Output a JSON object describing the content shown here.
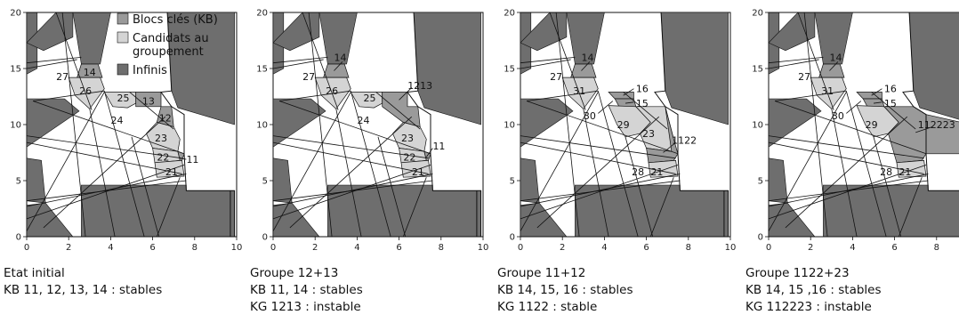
{
  "colors": {
    "key_block": "#9a9a9a",
    "candidate": "#d4d4d4",
    "infinite": "#6e6e6e",
    "free": "#ffffff",
    "line": "#111111"
  },
  "axes": {
    "xlim": [
      0,
      10
    ],
    "ylim": [
      0,
      20
    ],
    "x_ticks": [
      "0",
      "2",
      "4",
      "6",
      "8",
      "10"
    ],
    "y_ticks": [
      "0",
      "5",
      "10",
      "15",
      "20"
    ]
  },
  "legend": {
    "items": [
      {
        "label_lines": [
          "Blocs clés (KB)"
        ],
        "color": "key_block"
      },
      {
        "label_lines": [
          "Candidats au",
          "groupement"
        ],
        "color": "candidate"
      },
      {
        "label_lines": [
          "Infinis"
        ],
        "color": "infinite"
      }
    ]
  },
  "panels": [
    {
      "caption": [
        "Etat initial",
        "KB 11, 12, 13, 14 : stables"
      ],
      "regions": [
        {
          "color": "key_block",
          "pts": [
            [
              2.6,
              15.4
            ],
            [
              3.4,
              15.4
            ],
            [
              3.6,
              14.2
            ],
            [
              2.4,
              14.2
            ]
          ]
        },
        {
          "color": "candidate",
          "pts": [
            [
              2.0,
              14.2
            ],
            [
              3.5,
              14.2
            ],
            [
              3.7,
              13.2
            ],
            [
              3.0,
              11.4
            ],
            [
              2.3,
              12.6
            ]
          ]
        },
        {
          "color": "candidate",
          "pts": [
            [
              3.7,
              12.9
            ],
            [
              5.2,
              12.9
            ],
            [
              5.2,
              11.9
            ],
            [
              4.8,
              11.5
            ],
            [
              4.1,
              11.6
            ]
          ]
        },
        {
          "color": "key_block",
          "pts": [
            [
              5.2,
              12.9
            ],
            [
              6.4,
              12.9
            ],
            [
              6.4,
              11.6
            ],
            [
              5.2,
              11.6
            ]
          ]
        },
        {
          "color": "key_block",
          "pts": [
            [
              6.4,
              11.6
            ],
            [
              6.9,
              11.6
            ],
            [
              7.0,
              9.8
            ],
            [
              6.2,
              10.2
            ]
          ]
        },
        {
          "color": "candidate",
          "pts": [
            [
              6.2,
              10.2
            ],
            [
              7.0,
              9.8
            ],
            [
              7.3,
              8.7
            ],
            [
              7.2,
              7.6
            ],
            [
              6.0,
              7.9
            ],
            [
              5.7,
              9.2
            ]
          ]
        },
        {
          "color": "candidate",
          "pts": [
            [
              6.0,
              7.9
            ],
            [
              7.2,
              7.6
            ],
            [
              7.3,
              6.8
            ],
            [
              6.1,
              6.6
            ]
          ]
        },
        {
          "color": "key_block",
          "pts": [
            [
              7.2,
              7.6
            ],
            [
              7.5,
              7.4
            ],
            [
              7.4,
              6.8
            ],
            [
              7.3,
              6.8
            ]
          ]
        },
        {
          "color": "candidate",
          "pts": [
            [
              6.1,
              6.6
            ],
            [
              7.4,
              6.8
            ],
            [
              7.5,
              5.4
            ],
            [
              6.2,
              5.3
            ]
          ]
        }
      ],
      "labels": [
        {
          "text": "14",
          "x": 3.0,
          "y": 14.7
        },
        {
          "text": "27",
          "x": 1.7,
          "y": 14.3
        },
        {
          "text": "26",
          "x": 2.8,
          "y": 13.0
        },
        {
          "text": "25",
          "x": 4.6,
          "y": 12.4
        },
        {
          "text": "13",
          "x": 5.8,
          "y": 12.1
        },
        {
          "text": "24",
          "x": 4.3,
          "y": 10.4
        },
        {
          "text": "12",
          "x": 6.6,
          "y": 10.6
        },
        {
          "text": "23",
          "x": 6.4,
          "y": 8.8
        },
        {
          "text": "22",
          "x": 6.5,
          "y": 7.1
        },
        {
          "text": "11",
          "x": 7.9,
          "y": 6.9
        },
        {
          "text": "21",
          "x": 6.9,
          "y": 5.8
        }
      ],
      "leaders": [
        {
          "x1": 7.6,
          "y1": 6.9,
          "x2": 7.3,
          "y2": 7.0
        }
      ]
    },
    {
      "caption": [
        "Groupe 12+13",
        "KB 11, 14 : stables",
        "KG 1213 : instable"
      ],
      "regions": [
        {
          "color": "key_block",
          "pts": [
            [
              2.6,
              15.4
            ],
            [
              3.4,
              15.4
            ],
            [
              3.6,
              14.2
            ],
            [
              2.4,
              14.2
            ]
          ]
        },
        {
          "color": "candidate",
          "pts": [
            [
              2.0,
              14.2
            ],
            [
              3.5,
              14.2
            ],
            [
              3.7,
              13.2
            ],
            [
              3.0,
              11.4
            ],
            [
              2.3,
              12.6
            ]
          ]
        },
        {
          "color": "candidate",
          "pts": [
            [
              3.7,
              12.9
            ],
            [
              5.2,
              12.9
            ],
            [
              5.2,
              11.9
            ],
            [
              4.8,
              11.5
            ],
            [
              4.1,
              11.6
            ]
          ]
        },
        {
          "color": "key_block",
          "pts": [
            [
              5.2,
              12.9
            ],
            [
              6.4,
              12.9
            ],
            [
              6.4,
              11.6
            ],
            [
              6.9,
              11.6
            ],
            [
              7.0,
              9.8
            ],
            [
              6.2,
              10.2
            ],
            [
              5.2,
              11.6
            ]
          ]
        },
        {
          "color": "candidate",
          "pts": [
            [
              6.2,
              10.2
            ],
            [
              7.0,
              9.8
            ],
            [
              7.3,
              8.7
            ],
            [
              7.2,
              7.6
            ],
            [
              6.0,
              7.9
            ],
            [
              5.7,
              9.2
            ]
          ]
        },
        {
          "color": "candidate",
          "pts": [
            [
              6.0,
              7.9
            ],
            [
              7.2,
              7.6
            ],
            [
              7.3,
              6.8
            ],
            [
              6.1,
              6.6
            ]
          ]
        },
        {
          "color": "key_block",
          "pts": [
            [
              7.2,
              7.6
            ],
            [
              7.5,
              7.4
            ],
            [
              7.4,
              6.8
            ],
            [
              7.3,
              6.8
            ]
          ]
        },
        {
          "color": "candidate",
          "pts": [
            [
              6.1,
              6.6
            ],
            [
              7.4,
              6.8
            ],
            [
              7.5,
              5.4
            ],
            [
              6.2,
              5.3
            ]
          ]
        }
      ],
      "labels": [
        {
          "text": "14",
          "x": 3.2,
          "y": 16.0
        },
        {
          "text": "27",
          "x": 1.7,
          "y": 14.3
        },
        {
          "text": "26",
          "x": 2.8,
          "y": 13.0
        },
        {
          "text": "1213",
          "x": 7.0,
          "y": 13.5
        },
        {
          "text": "25",
          "x": 4.6,
          "y": 12.4
        },
        {
          "text": "24",
          "x": 4.3,
          "y": 10.4
        },
        {
          "text": "23",
          "x": 6.4,
          "y": 8.8
        },
        {
          "text": "22",
          "x": 6.5,
          "y": 7.1
        },
        {
          "text": "11",
          "x": 7.9,
          "y": 8.1
        },
        {
          "text": "21",
          "x": 6.9,
          "y": 5.8
        }
      ],
      "leaders": [
        {
          "x1": 3.3,
          "y1": 15.6,
          "x2": 2.9,
          "y2": 14.8
        },
        {
          "x1": 6.6,
          "y1": 13.3,
          "x2": 6.0,
          "y2": 12.2
        },
        {
          "x1": 7.6,
          "y1": 7.9,
          "x2": 7.3,
          "y2": 7.1
        }
      ]
    },
    {
      "caption": [
        "Groupe 11+12",
        "KB 14, 15, 16 : stables",
        "KG  1122 : stable"
      ],
      "regions": [
        {
          "color": "key_block",
          "pts": [
            [
              2.6,
              15.4
            ],
            [
              3.4,
              15.4
            ],
            [
              3.6,
              14.2
            ],
            [
              2.4,
              14.2
            ]
          ]
        },
        {
          "color": "candidate",
          "pts": [
            [
              2.0,
              14.2
            ],
            [
              3.5,
              14.2
            ],
            [
              3.7,
              13.2
            ],
            [
              3.0,
              11.4
            ],
            [
              2.3,
              12.6
            ]
          ]
        },
        {
          "color": "key_block",
          "pts": [
            [
              4.2,
              12.9
            ],
            [
              5.4,
              12.9
            ],
            [
              5.4,
              12.3
            ],
            [
              4.5,
              12.3
            ]
          ]
        },
        {
          "color": "key_block",
          "pts": [
            [
              4.5,
              12.3
            ],
            [
              5.4,
              12.3
            ],
            [
              5.5,
              11.6
            ],
            [
              4.7,
              11.6
            ]
          ]
        },
        {
          "color": "candidate",
          "pts": [
            [
              4.2,
              11.7
            ],
            [
              5.5,
              11.6
            ],
            [
              6.2,
              10.2
            ],
            [
              5.7,
              9.2
            ],
            [
              5.0,
              8.9
            ],
            [
              4.6,
              10.0
            ]
          ]
        },
        {
          "color": "candidate",
          "pts": [
            [
              5.5,
              11.6
            ],
            [
              6.9,
              11.6
            ],
            [
              7.3,
              8.7
            ],
            [
              7.2,
              7.6
            ],
            [
              6.0,
              7.9
            ],
            [
              5.7,
              9.2
            ],
            [
              6.2,
              10.2
            ]
          ]
        },
        {
          "color": "key_block",
          "pts": [
            [
              6.9,
              11.6
            ],
            [
              7.3,
              8.7
            ],
            [
              7.5,
              7.4
            ],
            [
              7.3,
              6.8
            ],
            [
              6.1,
              6.6
            ],
            [
              6.0,
              7.9
            ],
            [
              7.2,
              7.6
            ]
          ]
        },
        {
          "color": "candidate",
          "pts": [
            [
              6.1,
              6.6
            ],
            [
              7.4,
              6.8
            ],
            [
              7.5,
              5.4
            ],
            [
              6.2,
              5.3
            ]
          ]
        }
      ],
      "labels": [
        {
          "text": "14",
          "x": 3.2,
          "y": 16.0
        },
        {
          "text": "27",
          "x": 1.7,
          "y": 14.3
        },
        {
          "text": "31",
          "x": 2.8,
          "y": 13.0
        },
        {
          "text": "16",
          "x": 5.8,
          "y": 13.2
        },
        {
          "text": "15",
          "x": 5.8,
          "y": 11.9
        },
        {
          "text": "30",
          "x": 3.3,
          "y": 10.8
        },
        {
          "text": "29",
          "x": 4.9,
          "y": 10.0
        },
        {
          "text": "23",
          "x": 6.1,
          "y": 9.2
        },
        {
          "text": "1122",
          "x": 7.8,
          "y": 8.6
        },
        {
          "text": "28",
          "x": 5.6,
          "y": 5.8
        },
        {
          "text": "21",
          "x": 6.5,
          "y": 5.8
        }
      ],
      "leaders": [
        {
          "x1": 3.3,
          "y1": 15.6,
          "x2": 2.9,
          "y2": 14.8
        },
        {
          "x1": 5.4,
          "y1": 13.2,
          "x2": 4.9,
          "y2": 12.6
        },
        {
          "x1": 5.4,
          "y1": 12.0,
          "x2": 5.0,
          "y2": 11.9
        },
        {
          "x1": 3.7,
          "y1": 11.0,
          "x2": 4.4,
          "y2": 12.1
        },
        {
          "x1": 7.4,
          "y1": 8.4,
          "x2": 6.8,
          "y2": 7.5
        }
      ]
    },
    {
      "caption": [
        "Groupe 1122+23",
        "KB  14, 15 ,16 : stables",
        "KG 112223 : instable"
      ],
      "regions": [
        {
          "color": "key_block",
          "pts": [
            [
              2.6,
              15.4
            ],
            [
              3.4,
              15.4
            ],
            [
              3.6,
              14.2
            ],
            [
              2.4,
              14.2
            ]
          ]
        },
        {
          "color": "candidate",
          "pts": [
            [
              2.0,
              14.2
            ],
            [
              3.5,
              14.2
            ],
            [
              3.7,
              13.2
            ],
            [
              3.0,
              11.4
            ],
            [
              2.3,
              12.6
            ]
          ]
        },
        {
          "color": "key_block",
          "pts": [
            [
              4.2,
              12.9
            ],
            [
              5.4,
              12.9
            ],
            [
              5.4,
              12.3
            ],
            [
              4.5,
              12.3
            ]
          ]
        },
        {
          "color": "key_block",
          "pts": [
            [
              4.5,
              12.3
            ],
            [
              5.4,
              12.3
            ],
            [
              5.5,
              11.6
            ],
            [
              4.7,
              11.6
            ]
          ]
        },
        {
          "color": "candidate",
          "pts": [
            [
              4.2,
              11.7
            ],
            [
              5.5,
              11.6
            ],
            [
              6.2,
              10.2
            ],
            [
              5.7,
              9.2
            ],
            [
              5.0,
              8.9
            ],
            [
              4.6,
              10.0
            ]
          ]
        },
        {
          "color": "key_block",
          "pts": [
            [
              5.5,
              11.6
            ],
            [
              6.9,
              11.6
            ],
            [
              7.5,
              10.9
            ],
            [
              9.9,
              9.9
            ],
            [
              9.9,
              7.4
            ],
            [
              7.5,
              7.4
            ],
            [
              7.3,
              6.8
            ],
            [
              6.1,
              6.6
            ],
            [
              5.7,
              9.2
            ],
            [
              6.2,
              10.2
            ]
          ]
        },
        {
          "color": "candidate",
          "pts": [
            [
              6.1,
              6.6
            ],
            [
              7.4,
              6.8
            ],
            [
              7.5,
              5.4
            ],
            [
              6.2,
              5.3
            ]
          ]
        }
      ],
      "labels": [
        {
          "text": "14",
          "x": 3.2,
          "y": 16.0
        },
        {
          "text": "27",
          "x": 1.7,
          "y": 14.3
        },
        {
          "text": "31",
          "x": 2.8,
          "y": 13.0
        },
        {
          "text": "16",
          "x": 5.8,
          "y": 13.2
        },
        {
          "text": "15",
          "x": 5.8,
          "y": 11.9
        },
        {
          "text": "30",
          "x": 3.3,
          "y": 10.8
        },
        {
          "text": "29",
          "x": 4.9,
          "y": 10.0
        },
        {
          "text": "112223",
          "x": 8.0,
          "y": 10.0
        },
        {
          "text": "28",
          "x": 5.6,
          "y": 5.8
        },
        {
          "text": "21",
          "x": 6.5,
          "y": 5.8
        }
      ],
      "leaders": [
        {
          "x1": 3.3,
          "y1": 15.6,
          "x2": 2.9,
          "y2": 14.8
        },
        {
          "x1": 5.4,
          "y1": 13.2,
          "x2": 4.9,
          "y2": 12.6
        },
        {
          "x1": 5.4,
          "y1": 12.0,
          "x2": 5.0,
          "y2": 11.9
        },
        {
          "x1": 3.7,
          "y1": 11.0,
          "x2": 4.4,
          "y2": 12.1
        },
        {
          "x1": 7.8,
          "y1": 9.8,
          "x2": 7.0,
          "y2": 9.3
        }
      ]
    }
  ]
}
